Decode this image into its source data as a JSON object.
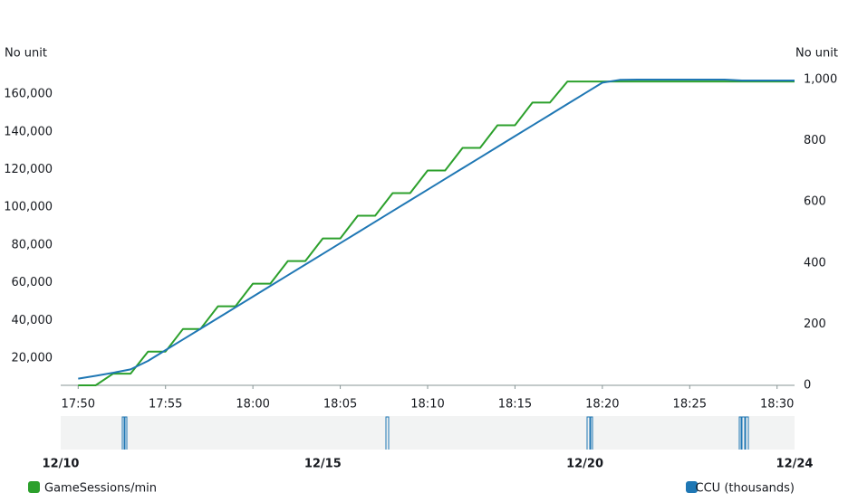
{
  "chart_data": {
    "type": "line",
    "y_axis_label": "No unit",
    "y2_axis_label": "No unit",
    "x": [
      "17:50",
      "17:51",
      "17:52",
      "17:53",
      "17:54",
      "17:55",
      "17:56",
      "17:57",
      "17:58",
      "17:59",
      "18:00",
      "18:01",
      "18:02",
      "18:03",
      "18:04",
      "18:05",
      "18:06",
      "18:07",
      "18:08",
      "18:09",
      "18:10",
      "18:11",
      "18:12",
      "18:13",
      "18:14",
      "18:15",
      "18:16",
      "18:17",
      "18:18",
      "18:19",
      "18:20",
      "18:21",
      "18:22",
      "18:23",
      "18:24",
      "18:25",
      "18:26",
      "18:27",
      "18:28",
      "18:29",
      "18:30",
      "18:31"
    ],
    "xlim": [
      "17:49",
      "18:31"
    ],
    "xticks": [
      "17:50",
      "17:55",
      "18:00",
      "18:05",
      "18:10",
      "18:15",
      "18:20",
      "18:25",
      "18:30"
    ],
    "ylim": [
      5600,
      167700
    ],
    "yticks": [
      {
        "value": 20000,
        "label": "20,000"
      },
      {
        "value": 40000,
        "label": "40,000"
      },
      {
        "value": 60000,
        "label": "60,000"
      },
      {
        "value": 80000,
        "label": "80,000"
      },
      {
        "value": 100000,
        "label": "100,000"
      },
      {
        "value": 120000,
        "label": "120,000"
      },
      {
        "value": 140000,
        "label": "140,000"
      },
      {
        "value": 160000,
        "label": "160,000"
      }
    ],
    "y2lim": [
      0,
      1000
    ],
    "y2ticks": [
      0,
      200,
      400,
      600,
      800,
      {
        "value": 1000,
        "label": "1,000"
      }
    ],
    "grid": false,
    "series": [
      {
        "name": "GameSessions/min",
        "color": "#2ca02c",
        "values": [
          5600,
          5600,
          11800,
          11800,
          23500,
          23500,
          35500,
          35500,
          47500,
          47500,
          59500,
          59500,
          71500,
          71500,
          83500,
          83500,
          95500,
          95500,
          107500,
          107500,
          119500,
          119500,
          131500,
          131500,
          143500,
          143500,
          155500,
          155500,
          166700,
          166700,
          166700,
          166700,
          166700,
          166700,
          166700,
          166700,
          166700,
          166700,
          166700,
          166700,
          166700,
          166700
        ]
      },
      {
        "name": "CCU (thousands)",
        "color": "#1f77b4",
        "axis": "y2",
        "values": [
          22,
          31,
          41,
          52,
          80,
          115,
          150,
          185,
          220,
          255,
          290,
          325,
          360,
          395,
          430,
          465,
          500,
          535,
          570,
          605,
          640,
          675,
          710,
          745,
          780,
          815,
          850,
          885,
          920,
          955,
          990,
          999,
          1000,
          1000,
          1000,
          1000,
          1000,
          1000,
          997,
          997,
          997,
          997
        ]
      }
    ],
    "navigator_ticks": [
      "12/10",
      "12/15",
      "12/20",
      "12/24"
    ]
  }
}
